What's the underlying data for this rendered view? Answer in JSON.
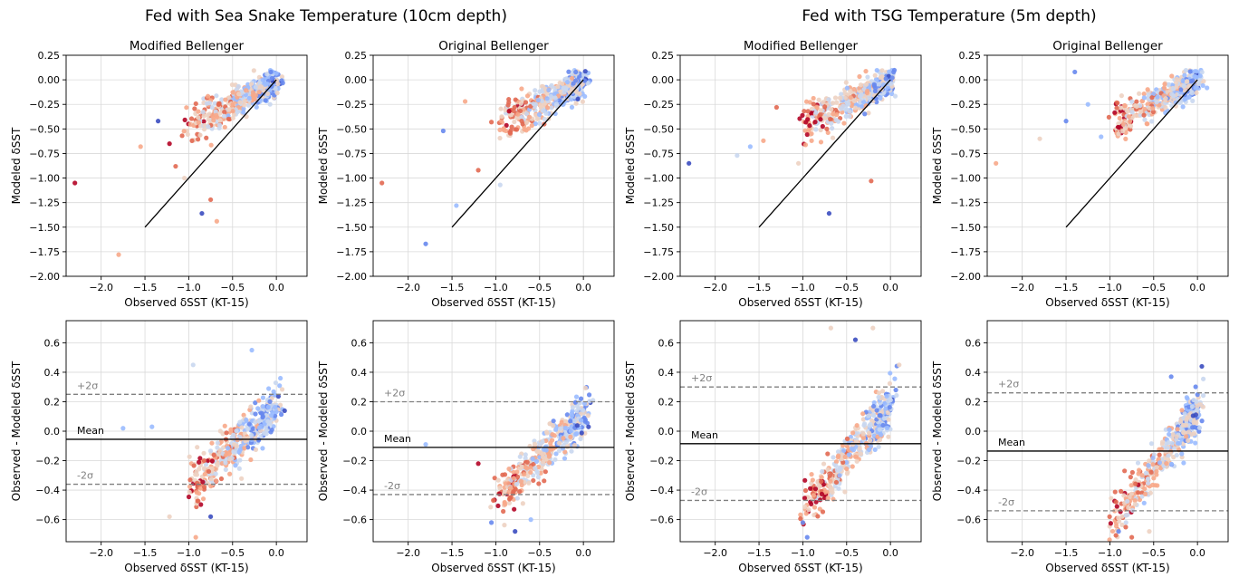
{
  "figure": {
    "group_titles": [
      "Fed with Sea Snake Temperature (10cm depth)",
      "Fed with TSG Temperature (5m depth)"
    ],
    "panel_titles": [
      "Modified Bellenger",
      "Original Bellenger",
      "Modified Bellenger",
      "Original Bellenger"
    ]
  },
  "chart_data": [
    {
      "type": "scatter",
      "row": 0,
      "col": 0,
      "title": "Modified Bellenger",
      "xlabel": "Observed δSST (KT-15)",
      "ylabel": "Modeled δSST",
      "xlim": [
        -2.4,
        0.35
      ],
      "ylim": [
        -2.0,
        0.25
      ],
      "xticks": [
        -2.0,
        -1.5,
        -1.0,
        -0.5,
        0.0
      ],
      "yticks": [
        0.25,
        0.0,
        -0.25,
        -0.5,
        -0.75,
        -1.0,
        -1.25,
        -1.5,
        -1.75,
        -2.0
      ],
      "grid": true,
      "one_to_one_line": [
        [
          -1.5,
          -1.5
        ],
        [
          0.0,
          0.0
        ]
      ],
      "seed": 11,
      "outliers": [
        [
          -2.3,
          -1.05
        ],
        [
          -1.8,
          -1.78
        ],
        [
          -1.55,
          -0.68
        ],
        [
          -0.68,
          -1.44
        ],
        [
          -1.35,
          -0.42
        ],
        [
          -1.22,
          -0.65
        ],
        [
          -0.85,
          -1.36
        ],
        [
          -0.75,
          -1.22
        ],
        [
          -1.15,
          -0.88
        ],
        [
          -1.05,
          -1.0
        ]
      ]
    },
    {
      "type": "scatter",
      "row": 0,
      "col": 1,
      "title": "Original Bellenger",
      "xlabel": "Observed δSST (KT-15)",
      "ylabel": "Modeled δSST",
      "xlim": [
        -2.4,
        0.35
      ],
      "ylim": [
        -2.0,
        0.25
      ],
      "xticks": [
        -2.0,
        -1.5,
        -1.0,
        -0.5,
        0.0
      ],
      "yticks": [
        0.25,
        0.0,
        -0.25,
        -0.5,
        -0.75,
        -1.0,
        -1.25,
        -1.5,
        -1.75,
        -2.0
      ],
      "grid": true,
      "one_to_one_line": [
        [
          -1.5,
          -1.5
        ],
        [
          0.0,
          0.0
        ]
      ],
      "seed": 23,
      "outliers": [
        [
          -2.3,
          -1.05
        ],
        [
          -1.8,
          -1.67
        ],
        [
          -1.6,
          -0.52
        ],
        [
          -1.45,
          -1.28
        ],
        [
          -1.35,
          -0.22
        ],
        [
          -1.2,
          -0.92
        ],
        [
          -1.05,
          -0.43
        ],
        [
          -0.95,
          -1.07
        ]
      ]
    },
    {
      "type": "scatter",
      "row": 0,
      "col": 2,
      "title": "Modified Bellenger",
      "xlabel": "Observed δSST (KT-15)",
      "ylabel": "Modeled δSST",
      "xlim": [
        -2.4,
        0.35
      ],
      "ylim": [
        -2.0,
        0.25
      ],
      "xticks": [
        -2.0,
        -1.5,
        -1.0,
        -0.5,
        0.0
      ],
      "yticks": [
        0.25,
        0.0,
        -0.25,
        -0.5,
        -0.75,
        -1.0,
        -1.25,
        -1.5,
        -1.75,
        -2.0
      ],
      "grid": true,
      "one_to_one_line": [
        [
          -1.5,
          -1.5
        ],
        [
          0.0,
          0.0
        ]
      ],
      "seed": 37,
      "outliers": [
        [
          -2.3,
          -0.85
        ],
        [
          -1.75,
          -0.77
        ],
        [
          -1.6,
          -0.68
        ],
        [
          -1.45,
          -0.62
        ],
        [
          -1.3,
          -0.28
        ],
        [
          -1.05,
          -0.85
        ],
        [
          -0.7,
          -1.36
        ],
        [
          -0.22,
          -1.03
        ],
        [
          -0.9,
          -0.62
        ]
      ]
    },
    {
      "type": "scatter",
      "row": 0,
      "col": 3,
      "title": "Original Bellenger",
      "xlabel": "Observed δSST (KT-15)",
      "ylabel": "Modeled δSST",
      "xlim": [
        -2.4,
        0.35
      ],
      "ylim": [
        -2.0,
        0.25
      ],
      "xticks": [
        -2.0,
        -1.5,
        -1.0,
        -0.5,
        0.0
      ],
      "yticks": [
        0.25,
        0.0,
        -0.25,
        -0.5,
        -0.75,
        -1.0,
        -1.25,
        -1.5,
        -1.75,
        -2.0
      ],
      "grid": true,
      "one_to_one_line": [
        [
          -1.5,
          -1.5
        ],
        [
          0.0,
          0.0
        ]
      ],
      "seed": 53,
      "outliers": [
        [
          -2.3,
          -0.85
        ],
        [
          -1.8,
          -0.6
        ],
        [
          -1.5,
          -0.42
        ],
        [
          -1.25,
          -0.25
        ],
        [
          -1.1,
          -0.58
        ],
        [
          -1.4,
          0.08
        ],
        [
          -0.9,
          -0.55
        ]
      ]
    },
    {
      "type": "scatter",
      "row": 1,
      "col": 0,
      "xlabel": "Observed δSST (KT-15)",
      "ylabel": "Observed - Modeled δSST",
      "xlim": [
        -2.4,
        0.35
      ],
      "ylim": [
        -0.75,
        0.75
      ],
      "xticks": [
        -2.0,
        -1.5,
        -1.0,
        -0.5,
        0.0
      ],
      "yticks": [
        0.6,
        0.4,
        0.2,
        0.0,
        -0.2,
        -0.4,
        -0.6
      ],
      "grid": true,
      "mean": -0.055,
      "plus2sigma": 0.25,
      "minus2sigma": -0.36,
      "labels": {
        "plus": "+2σ",
        "mean": "Mean",
        "minus": "-2σ"
      },
      "seed": 71,
      "outliers": [
        [
          -1.75,
          0.02
        ],
        [
          -1.42,
          0.03
        ],
        [
          -1.22,
          -0.58
        ],
        [
          -0.95,
          0.45
        ],
        [
          -0.92,
          -0.72
        ],
        [
          -0.75,
          -0.58
        ],
        [
          -0.28,
          0.55
        ]
      ]
    },
    {
      "type": "scatter",
      "row": 1,
      "col": 1,
      "xlabel": "Observed δSST (KT-15)",
      "ylabel": "Observed - Modeled δSST",
      "xlim": [
        -2.4,
        0.35
      ],
      "ylim": [
        -0.75,
        0.75
      ],
      "xticks": [
        -2.0,
        -1.5,
        -1.0,
        -0.5,
        0.0
      ],
      "yticks": [
        0.6,
        0.4,
        0.2,
        0.0,
        -0.2,
        -0.4,
        -0.6
      ],
      "grid": true,
      "mean": -0.11,
      "plus2sigma": 0.2,
      "minus2sigma": -0.43,
      "labels": {
        "plus": "+2σ",
        "mean": "Mean",
        "minus": "-2σ"
      },
      "seed": 89,
      "outliers": [
        [
          -1.8,
          -0.09
        ],
        [
          -1.2,
          -0.22
        ],
        [
          -1.05,
          -0.62
        ],
        [
          -0.78,
          -0.68
        ],
        [
          -0.6,
          -0.6
        ]
      ]
    },
    {
      "type": "scatter",
      "row": 1,
      "col": 2,
      "xlabel": "Observed δSST (KT-15)",
      "ylabel": "Observed - Modeled δSST",
      "xlim": [
        -2.4,
        0.35
      ],
      "ylim": [
        -0.75,
        0.75
      ],
      "xticks": [
        -2.0,
        -1.5,
        -1.0,
        -0.5,
        0.0
      ],
      "yticks": [
        0.6,
        0.4,
        0.2,
        0.0,
        -0.2,
        -0.4,
        -0.6
      ],
      "grid": true,
      "mean": -0.085,
      "plus2sigma": 0.3,
      "minus2sigma": -0.47,
      "labels": {
        "plus": "+2σ",
        "mean": "Mean",
        "minus": "-2σ"
      },
      "seed": 97,
      "outliers": [
        [
          -0.68,
          0.7
        ],
        [
          -0.2,
          0.7
        ],
        [
          -1.0,
          -0.62
        ],
        [
          -0.95,
          -0.72
        ],
        [
          -0.4,
          0.62
        ],
        [
          0.1,
          0.45
        ]
      ]
    },
    {
      "type": "scatter",
      "row": 1,
      "col": 3,
      "xlabel": "Observed δSST (KT-15)",
      "ylabel": "Observed - Modeled δSST",
      "xlim": [
        -2.4,
        0.35
      ],
      "ylim": [
        -0.75,
        0.75
      ],
      "xticks": [
        -2.0,
        -1.5,
        -1.0,
        -0.5,
        0.0
      ],
      "yticks": [
        0.6,
        0.4,
        0.2,
        0.0,
        -0.2,
        -0.4,
        -0.6
      ],
      "grid": true,
      "mean": -0.135,
      "plus2sigma": 0.26,
      "minus2sigma": -0.54,
      "labels": {
        "plus": "+2σ",
        "mean": "Mean",
        "minus": "-2σ"
      },
      "seed": 113,
      "outliers": [
        [
          -0.9,
          -0.68
        ],
        [
          -0.75,
          -0.72
        ],
        [
          0.05,
          0.44
        ],
        [
          -0.3,
          0.37
        ],
        [
          -0.55,
          -0.68
        ]
      ]
    }
  ],
  "colors": {
    "grid": "#d9d9d9",
    "axis": "#000000",
    "line": "#000000",
    "dashed": "#808080",
    "label_gray": "#808080",
    "colormap": [
      "#3b4cc0",
      "#6788ee",
      "#9abbff",
      "#c9d7f0",
      "#edd1c2",
      "#f7a889",
      "#e26952",
      "#b40426"
    ]
  }
}
